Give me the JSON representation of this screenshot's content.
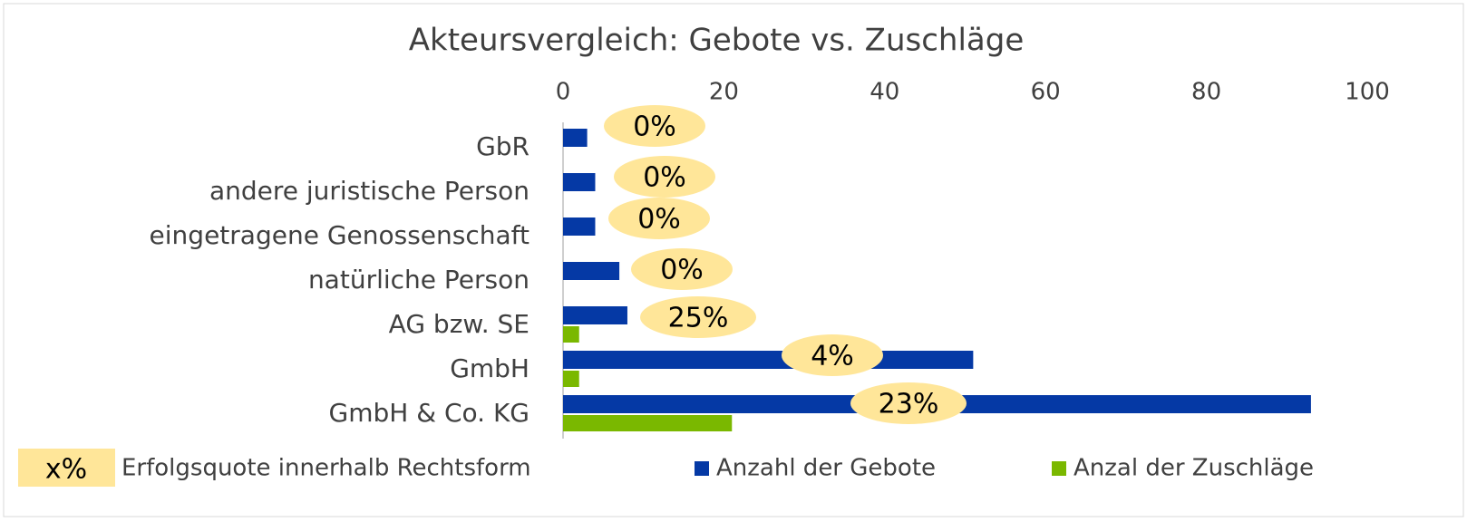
{
  "chart_data": {
    "type": "hbar",
    "title": "Akteursvergleich: Gebote vs. Zuschläge",
    "categories": [
      "GbR",
      "andere juristische Person",
      "eingetragene Genossenschaft",
      "natürliche Person",
      "AG bzw. SE",
      "GmbH",
      "GmbH & Co. KG"
    ],
    "series": [
      {
        "name": "Anzahl der Gebote",
        "color": "#0539a5",
        "values": [
          3,
          4,
          4,
          7,
          8,
          51,
          93
        ]
      },
      {
        "name": "Anzal der Zuschläge",
        "color": "#7ab800",
        "values": [
          0,
          0,
          0,
          0,
          2,
          2,
          21
        ]
      }
    ],
    "success_rate": {
      "name": "Erfolgsquote innerhalb Rechtsform",
      "legend_symbol": "x%",
      "color": "#ffe699",
      "values": [
        0,
        0,
        0,
        0,
        25,
        4,
        23
      ],
      "value_labels": [
        "0%",
        "0%",
        "0%",
        "0%",
        "25%",
        "4%",
        "23%"
      ]
    },
    "xlim": [
      0,
      100
    ],
    "xticks": [
      0,
      20,
      40,
      60,
      80,
      100
    ],
    "grid": false
  }
}
